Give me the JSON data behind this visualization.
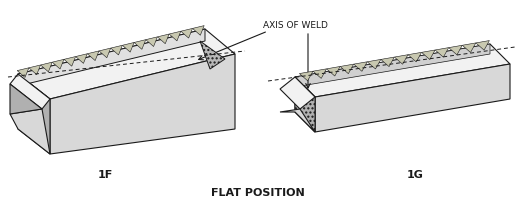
{
  "background_color": "#ffffff",
  "text_color": "#1a1a1a",
  "title": "FLAT POSITION",
  "label_1f": "1F",
  "label_1g": "1G",
  "axis_label": "AXIS OF WELD",
  "figsize": [
    5.16,
    2.03
  ],
  "dpi": 100,
  "line_color": "#1a1a1a",
  "face_light": "#f2f2f2",
  "face_mid": "#d8d8d8",
  "face_dark": "#b0b0b0",
  "weld_fill": "#c0b090",
  "weld_dot": "#909090"
}
